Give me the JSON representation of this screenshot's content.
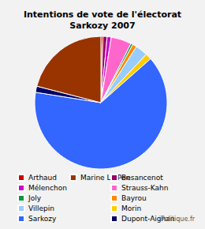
{
  "chart_data": {
    "type": "pie",
    "title": "Intentions de vote de l'électorat\nSarkozy 2007",
    "categories": [
      "Arthaud",
      "Besancenot",
      "Mélenchon",
      "Strauss-Kahn",
      "Joly",
      "Bayrou",
      "Villepin",
      "Morin",
      "Sarkozy",
      "Dupont-Aignan",
      "Marine Le Pen"
    ],
    "values": [
      0.5,
      1,
      1,
      5,
      0.5,
      1,
      3,
      1.5,
      64,
      1.5,
      21
    ],
    "colors": [
      "#cc0000",
      "#990066",
      "#cc00cc",
      "#ff66cc",
      "#009944",
      "#ff8800",
      "#99ccff",
      "#ffcc00",
      "#3366ff",
      "#000066",
      "#993300"
    ],
    "legend": "bottom",
    "annotations": [
      "iPolitique.fr"
    ]
  }
}
